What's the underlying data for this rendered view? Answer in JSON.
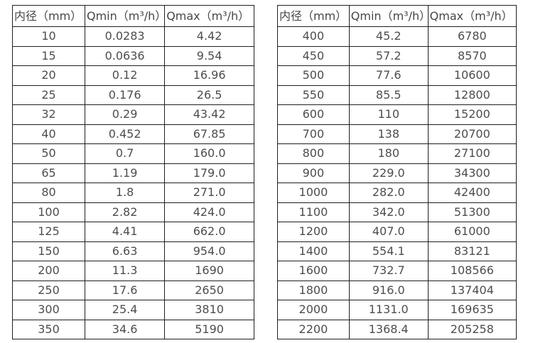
{
  "columns": {
    "diameter": "内径（mm）",
    "qmin": "Qmin（m³/h）",
    "qmax": "Qmax（m³/h）"
  },
  "left": {
    "rows": [
      [
        "10",
        "0.0283",
        "4.42"
      ],
      [
        "15",
        "0.0636",
        "9.54"
      ],
      [
        "20",
        "0.12",
        "16.96"
      ],
      [
        "25",
        "0.176",
        "26.5"
      ],
      [
        "32",
        "0.29",
        "43.42"
      ],
      [
        "40",
        "0.452",
        "67.85"
      ],
      [
        "50",
        "0.7",
        "160.0"
      ],
      [
        "65",
        "1.19",
        "179.0"
      ],
      [
        "80",
        "1.8",
        "271.0"
      ],
      [
        "100",
        "2.82",
        "424.0"
      ],
      [
        "125",
        "4.41",
        "662.0"
      ],
      [
        "150",
        "6.63",
        "954.0"
      ],
      [
        "200",
        "11.3",
        "1690"
      ],
      [
        "250",
        "17.6",
        "2650"
      ],
      [
        "300",
        "25.4",
        "3810"
      ],
      [
        "350",
        "34.6",
        "5190"
      ]
    ]
  },
  "right": {
    "rows": [
      [
        "400",
        "45.2",
        "6780"
      ],
      [
        "450",
        "57.2",
        "8570"
      ],
      [
        "500",
        "77.6",
        "10600"
      ],
      [
        "550",
        "85.5",
        "12800"
      ],
      [
        "600",
        "110",
        "15200"
      ],
      [
        "700",
        "138",
        "20700"
      ],
      [
        "800",
        "180",
        "27100"
      ],
      [
        "900",
        "229.0",
        "34300"
      ],
      [
        "1000",
        "282.0",
        "42400"
      ],
      [
        "1100",
        "342.0",
        "51300"
      ],
      [
        "1200",
        "407.0",
        "61000"
      ],
      [
        "1400",
        "554.1",
        "83121"
      ],
      [
        "1600",
        "732.7",
        "108566"
      ],
      [
        "1800",
        "916.0",
        "137404"
      ],
      [
        "2000",
        "1131.0",
        "169635"
      ],
      [
        "2200",
        "1368.4",
        "205258"
      ]
    ]
  }
}
